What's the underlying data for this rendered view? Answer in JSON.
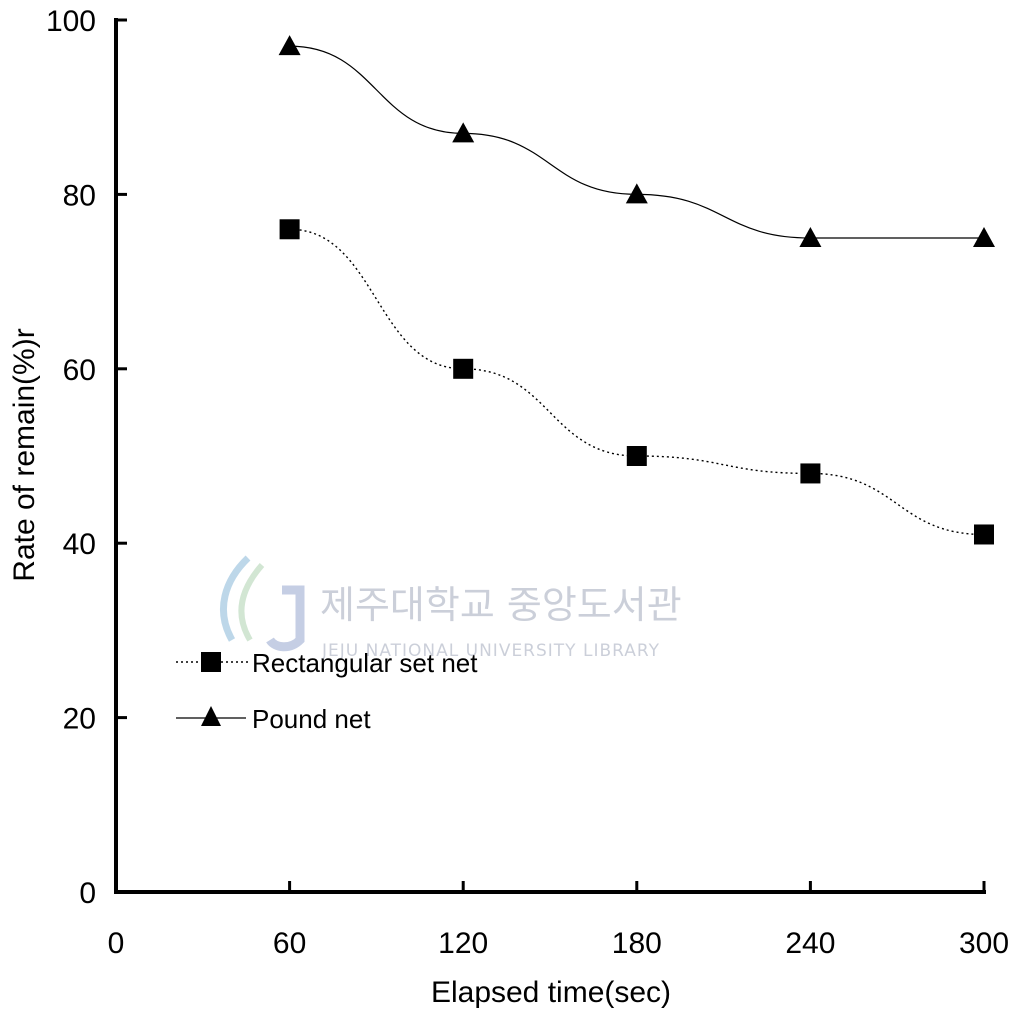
{
  "chart_data": {
    "type": "line",
    "xlabel": "Elapsed time(sec)",
    "ylabel": "Rate of remain(%)r",
    "xlim": [
      0,
      300
    ],
    "ylim": [
      0,
      100
    ],
    "xticks": [
      0,
      60,
      120,
      180,
      240,
      300
    ],
    "yticks": [
      0,
      20,
      40,
      60,
      80,
      100
    ],
    "x": [
      60,
      120,
      180,
      240,
      300
    ],
    "series": [
      {
        "name": "Rectangular set net",
        "values": [
          76,
          60,
          50,
          48,
          41
        ],
        "marker": "square",
        "line_style": "dotted"
      },
      {
        "name": "Pound net",
        "values": [
          97,
          87,
          80,
          75,
          75
        ],
        "marker": "triangle",
        "line_style": "solid"
      }
    ],
    "legend_position": "lower-left",
    "grid": false
  },
  "watermark": {
    "korean": "제주대학교 중앙도서관",
    "english": "JEJU NATIONAL UNIVERSITY LIBRARY",
    "color": "#8e97ad"
  }
}
